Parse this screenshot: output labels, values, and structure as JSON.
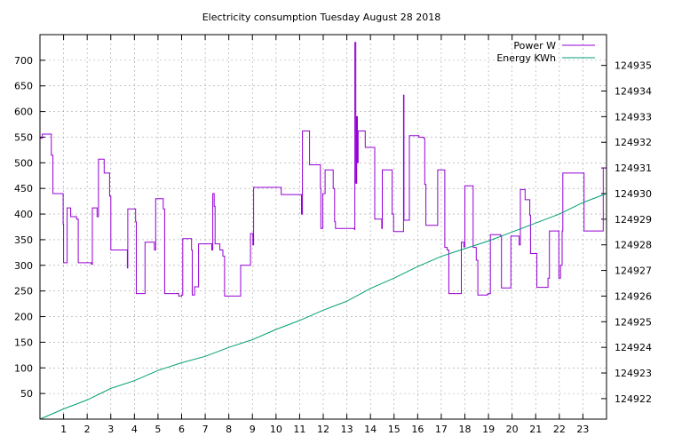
{
  "chart_data": {
    "type": "line",
    "title": "Electricity consumption Tuesday August 28 2018",
    "xlabel": "",
    "ylabel": "",
    "y2label": "",
    "xlim": [
      0,
      24
    ],
    "ylim": [
      0,
      750
    ],
    "y2lim": [
      124921.2,
      124936.2
    ],
    "grid": true,
    "legend_position": "top-right",
    "x_ticks": [
      "1",
      "2",
      "3",
      "4",
      "5",
      "6",
      "7",
      "8",
      "9",
      "10",
      "11",
      "12",
      "13",
      "14",
      "15",
      "16",
      "17",
      "18",
      "19",
      "20",
      "21",
      "22",
      "23"
    ],
    "y_ticks": [
      "50",
      "100",
      "150",
      "200",
      "250",
      "300",
      "350",
      "400",
      "450",
      "500",
      "550",
      "600",
      "650",
      "700"
    ],
    "y2_ticks": [
      "124922",
      "124923",
      "124924",
      "124925",
      "124926",
      "124927",
      "124928",
      "124929",
      "124930",
      "124931",
      "124932",
      "124933",
      "124934",
      "124935"
    ],
    "series": [
      {
        "name": "Power W",
        "axis": "left",
        "color": "#9400d3",
        "points": [
          [
            0,
            548
          ],
          [
            0.1,
            556
          ],
          [
            0.48,
            515
          ],
          [
            0.55,
            440
          ],
          [
            0.98,
            380
          ],
          [
            1.0,
            305
          ],
          [
            1.12,
            305
          ],
          [
            1.15,
            412
          ],
          [
            1.3,
            395
          ],
          [
            1.55,
            390
          ],
          [
            1.62,
            305
          ],
          [
            2.18,
            302
          ],
          [
            2.22,
            412
          ],
          [
            2.42,
            395
          ],
          [
            2.48,
            507
          ],
          [
            2.72,
            480
          ],
          [
            2.95,
            435
          ],
          [
            3.0,
            330
          ],
          [
            3.65,
            330
          ],
          [
            3.7,
            295
          ],
          [
            3.72,
            410
          ],
          [
            4.05,
            385
          ],
          [
            4.08,
            245
          ],
          [
            4.42,
            245
          ],
          [
            4.45,
            345
          ],
          [
            4.85,
            330
          ],
          [
            4.9,
            430
          ],
          [
            5.22,
            410
          ],
          [
            5.28,
            245
          ],
          [
            5.88,
            240
          ],
          [
            6.0,
            242
          ],
          [
            6.05,
            352
          ],
          [
            6.42,
            330
          ],
          [
            6.45,
            242
          ],
          [
            6.55,
            258
          ],
          [
            6.72,
            342
          ],
          [
            7.28,
            330
          ],
          [
            7.32,
            440
          ],
          [
            7.38,
            415
          ],
          [
            7.42,
            342
          ],
          [
            7.62,
            330
          ],
          [
            7.75,
            318
          ],
          [
            7.82,
            240
          ],
          [
            8.45,
            240
          ],
          [
            8.5,
            300
          ],
          [
            8.92,
            362
          ],
          [
            9.02,
            340
          ],
          [
            9.05,
            452
          ],
          [
            10.18,
            452
          ],
          [
            10.22,
            438
          ],
          [
            11.05,
            438
          ],
          [
            11.08,
            400
          ],
          [
            11.12,
            562
          ],
          [
            11.42,
            496
          ],
          [
            11.88,
            450
          ],
          [
            11.9,
            372
          ],
          [
            11.98,
            440
          ],
          [
            12.08,
            486
          ],
          [
            12.42,
            450
          ],
          [
            12.48,
            385
          ],
          [
            12.52,
            372
          ],
          [
            13.32,
            370
          ],
          [
            13.34,
            735
          ],
          [
            13.38,
            460
          ],
          [
            13.42,
            590
          ],
          [
            13.45,
            500
          ],
          [
            13.48,
            562
          ],
          [
            13.78,
            530
          ],
          [
            14.12,
            530
          ],
          [
            14.18,
            390
          ],
          [
            14.48,
            372
          ],
          [
            14.5,
            486
          ],
          [
            14.92,
            400
          ],
          [
            14.98,
            366
          ],
          [
            15.38,
            366
          ],
          [
            15.4,
            632
          ],
          [
            15.42,
            388
          ],
          [
            15.62,
            388
          ],
          [
            15.65,
            553
          ],
          [
            16.05,
            550
          ],
          [
            16.25,
            548
          ],
          [
            16.3,
            458
          ],
          [
            16.35,
            378
          ],
          [
            16.82,
            378
          ],
          [
            16.85,
            486
          ],
          [
            17.15,
            335
          ],
          [
            17.25,
            330
          ],
          [
            17.32,
            245
          ],
          [
            17.8,
            245
          ],
          [
            17.85,
            345
          ],
          [
            17.95,
            336
          ],
          [
            18.0,
            455
          ],
          [
            18.32,
            455
          ],
          [
            18.35,
            335
          ],
          [
            18.48,
            310
          ],
          [
            18.55,
            242
          ],
          [
            18.95,
            244
          ],
          [
            19.02,
            245
          ],
          [
            19.08,
            360
          ],
          [
            19.5,
            358
          ],
          [
            19.55,
            256
          ],
          [
            19.92,
            256
          ],
          [
            19.95,
            357
          ],
          [
            20.25,
            357
          ],
          [
            20.3,
            340
          ],
          [
            20.35,
            448
          ],
          [
            20.55,
            428
          ],
          [
            20.75,
            398
          ],
          [
            20.78,
            323
          ],
          [
            21.02,
            323
          ],
          [
            21.05,
            257
          ],
          [
            21.48,
            257
          ],
          [
            21.52,
            275
          ],
          [
            21.58,
            367
          ],
          [
            21.95,
            367
          ],
          [
            21.98,
            275
          ],
          [
            22.05,
            300
          ],
          [
            22.12,
            367
          ],
          [
            22.15,
            480
          ],
          [
            22.35,
            480
          ],
          [
            23.02,
            480
          ],
          [
            23.05,
            367
          ],
          [
            23.82,
            367
          ],
          [
            23.86,
            490
          ],
          [
            24.0,
            490
          ]
        ]
      },
      {
        "name": "Energy KWh",
        "axis": "right",
        "color": "#009e73",
        "points": [
          [
            0,
            124921.2
          ],
          [
            1,
            124921.6
          ],
          [
            2,
            124921.95
          ],
          [
            3,
            124922.4
          ],
          [
            4,
            124922.7
          ],
          [
            5,
            124923.1
          ],
          [
            6,
            124923.4
          ],
          [
            7,
            124923.65
          ],
          [
            8,
            124924.0
          ],
          [
            9,
            124924.3
          ],
          [
            10,
            124924.7
          ],
          [
            11,
            124925.05
          ],
          [
            12,
            124925.45
          ],
          [
            13,
            124925.8
          ],
          [
            14,
            124926.3
          ],
          [
            15,
            124926.7
          ],
          [
            16,
            124927.15
          ],
          [
            17,
            124927.55
          ],
          [
            18,
            124927.85
          ],
          [
            19,
            124928.15
          ],
          [
            20,
            124928.5
          ],
          [
            21,
            124928.85
          ],
          [
            22,
            124929.2
          ],
          [
            23,
            124929.65
          ],
          [
            24,
            124930.0
          ]
        ]
      }
    ]
  }
}
